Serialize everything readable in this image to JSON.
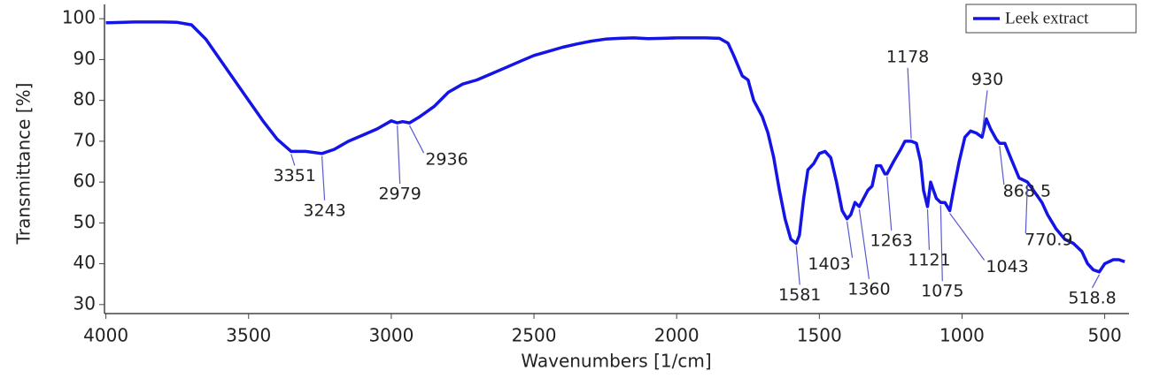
{
  "chart_data": {
    "type": "line",
    "xlabel": "Wavenumbers [1/cm]",
    "ylabel": "Transmittance [%]",
    "x": [
      4000,
      3900,
      3800,
      3750,
      3700,
      3650,
      3600,
      3550,
      3500,
      3450,
      3400,
      3351,
      3300,
      3243,
      3200,
      3150,
      3100,
      3050,
      3000,
      2979,
      2960,
      2936,
      2900,
      2850,
      2800,
      2750,
      2700,
      2650,
      2600,
      2550,
      2500,
      2450,
      2400,
      2350,
      2300,
      2250,
      2200,
      2150,
      2100,
      2050,
      2000,
      1950,
      1900,
      1850,
      1820,
      1800,
      1770,
      1750,
      1730,
      1700,
      1680,
      1660,
      1640,
      1620,
      1600,
      1581,
      1570,
      1555,
      1540,
      1520,
      1500,
      1480,
      1460,
      1440,
      1420,
      1403,
      1390,
      1375,
      1360,
      1345,
      1330,
      1315,
      1300,
      1285,
      1270,
      1263,
      1240,
      1215,
      1200,
      1178,
      1160,
      1145,
      1135,
      1121,
      1110,
      1100,
      1090,
      1075,
      1060,
      1043,
      1030,
      1010,
      990,
      970,
      950,
      930,
      915,
      900,
      880,
      868.5,
      850,
      830,
      800,
      770.9,
      750,
      720,
      700,
      670,
      640,
      610,
      580,
      560,
      540,
      518.8,
      500,
      470,
      450,
      430
    ],
    "series": [
      {
        "name": "Leek extract",
        "color": "#1414e6",
        "values": [
          99,
          99.2,
          99.2,
          99.1,
          98.5,
          95,
          90,
          85,
          80,
          75,
          70.5,
          67.5,
          67.5,
          67,
          68,
          70,
          71.5,
          73,
          75,
          74.5,
          74.8,
          74.5,
          76,
          78.5,
          82,
          84,
          85,
          86.5,
          88,
          89.5,
          91,
          92,
          93,
          93.8,
          94.5,
          95,
          95.2,
          95.3,
          95.1,
          95.2,
          95.3,
          95.3,
          95.3,
          95.2,
          94,
          91,
          86,
          85,
          80,
          76,
          72,
          66,
          58,
          51,
          46,
          45,
          47,
          56,
          63,
          64.5,
          67,
          67.5,
          66,
          60,
          53,
          51,
          52,
          55,
          54,
          56,
          58,
          59,
          64,
          64,
          62,
          62,
          65,
          68,
          70,
          70,
          69.5,
          65,
          58,
          54,
          60,
          58,
          56,
          55,
          55,
          53,
          58,
          65,
          71,
          72.5,
          72,
          71,
          75.5,
          73,
          70.5,
          69.5,
          69.5,
          66,
          61,
          60,
          58,
          55,
          52,
          48.5,
          46,
          45,
          43,
          40,
          38.5,
          38,
          40,
          41,
          41,
          40.5
        ]
      }
    ],
    "annotations": [
      3351,
      3243,
      2979,
      2936,
      1581,
      1403,
      1360,
      1263,
      1178,
      1121,
      1075,
      1043,
      930,
      868.5,
      770.9,
      518.8
    ],
    "xlim": [
      4005,
      415
    ],
    "ylim": [
      27.8,
      103.5
    ],
    "xticks": [
      4000,
      3500,
      3000,
      2500,
      2000,
      1500,
      1000,
      500
    ],
    "yticks": [
      30,
      40,
      50,
      60,
      70,
      80,
      90,
      100
    ],
    "grid": false,
    "legend": "upper right"
  }
}
